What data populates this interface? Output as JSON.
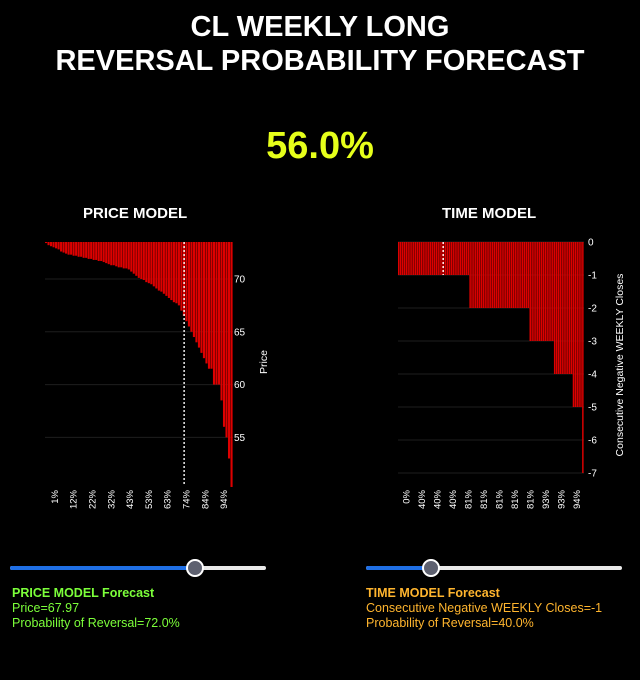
{
  "title": {
    "line1": "CL WEEKLY LONG",
    "line2": "REVERSAL PROBABILITY FORECAST"
  },
  "headline_probability": "56.0%",
  "colors": {
    "bars": "#dd0000",
    "headline": "#e6ff1a",
    "price_text": "#7cff3a",
    "time_text": "#ffb52e",
    "slider_fill": "#1f6fe5"
  },
  "chart_data": [
    {
      "type": "bar",
      "title": "PRICE MODEL",
      "xlabel": "",
      "ylabel": "Price",
      "x_tick_labels": [
        "1%",
        "12%",
        "22%",
        "32%",
        "43%",
        "53%",
        "63%",
        "74%",
        "84%",
        "94%"
      ],
      "y_ticks": [
        55,
        60,
        65,
        70
      ],
      "ylim": [
        50.3,
        73.5
      ],
      "y_axis_side": "right",
      "bars_hang_from": "top",
      "marker_percentile": 0.74,
      "values": [
        73.4,
        73.2,
        73.1,
        73.0,
        72.9,
        72.8,
        72.6,
        72.5,
        72.4,
        72.3,
        72.3,
        72.2,
        72.2,
        72.1,
        72.1,
        72.0,
        72.0,
        71.9,
        71.9,
        71.8,
        71.8,
        71.7,
        71.7,
        71.6,
        71.5,
        71.4,
        71.3,
        71.3,
        71.2,
        71.1,
        71.1,
        71.0,
        71.0,
        70.9,
        70.7,
        70.5,
        70.3,
        70.1,
        70.0,
        69.9,
        69.7,
        69.6,
        69.5,
        69.3,
        69.1,
        68.9,
        68.8,
        68.6,
        68.4,
        68.2,
        68.0,
        67.8,
        67.7,
        67.5,
        67.0,
        66.5,
        66.0,
        65.5,
        65.0,
        64.5,
        64.0,
        63.5,
        63.0,
        62.5,
        62.0,
        61.5,
        61.5,
        60.0,
        60.0,
        60.0,
        58.5,
        56.0,
        55.0,
        53.0,
        50.3
      ]
    },
    {
      "type": "bar",
      "title": "TIME MODEL",
      "xlabel": "",
      "ylabel": "Consecutive Negative WEEKLY Closes",
      "x_tick_labels": [
        "0%",
        "40%",
        "40%",
        "40%",
        "81%",
        "81%",
        "81%",
        "81%",
        "81%",
        "93%",
        "93%",
        "94%"
      ],
      "y_ticks": [
        0,
        -1,
        -2,
        -3,
        -4,
        -5,
        -6,
        -7
      ],
      "ylim": [
        -7,
        0
      ],
      "y_axis_side": "right",
      "bars_hang_from": "top",
      "marker_percentile": 0.243,
      "values": [
        -1,
        -1,
        -1,
        -1,
        -1,
        -1,
        -1,
        -1,
        -1,
        -1,
        -1,
        -1,
        -1,
        -1,
        -1,
        -1,
        -1,
        -1,
        -1,
        -1,
        -1,
        -1,
        -1,
        -1,
        -1,
        -1,
        -1,
        -1,
        -1,
        -1,
        -1,
        -1,
        -1,
        -1,
        -1,
        -1,
        -1,
        -1,
        -2,
        -2,
        -2,
        -2,
        -2,
        -2,
        -2,
        -2,
        -2,
        -2,
        -2,
        -2,
        -2,
        -2,
        -2,
        -2,
        -2,
        -2,
        -2,
        -2,
        -2,
        -2,
        -2,
        -2,
        -2,
        -2,
        -2,
        -2,
        -2,
        -2,
        -2,
        -2,
        -3,
        -3,
        -3,
        -3,
        -3,
        -3,
        -3,
        -3,
        -3,
        -3,
        -3,
        -3,
        -3,
        -4,
        -4,
        -4,
        -4,
        -4,
        -4,
        -4,
        -4,
        -4,
        -4,
        -5,
        -5,
        -5,
        -5,
        -5,
        -7
      ]
    }
  ],
  "sliders": [
    {
      "name": "price",
      "value_fraction": 0.72
    },
    {
      "name": "time",
      "value_fraction": 0.25
    }
  ],
  "price_forecast": {
    "heading": "PRICE MODEL Forecast",
    "price": "Price=67.97",
    "probability": "Probability of Reversal=72.0%"
  },
  "time_forecast": {
    "heading": "TIME MODEL Forecast",
    "closes": "Consecutive Negative WEEKLY Closes=-1",
    "probability": "Probability of Reversal=40.0%"
  }
}
